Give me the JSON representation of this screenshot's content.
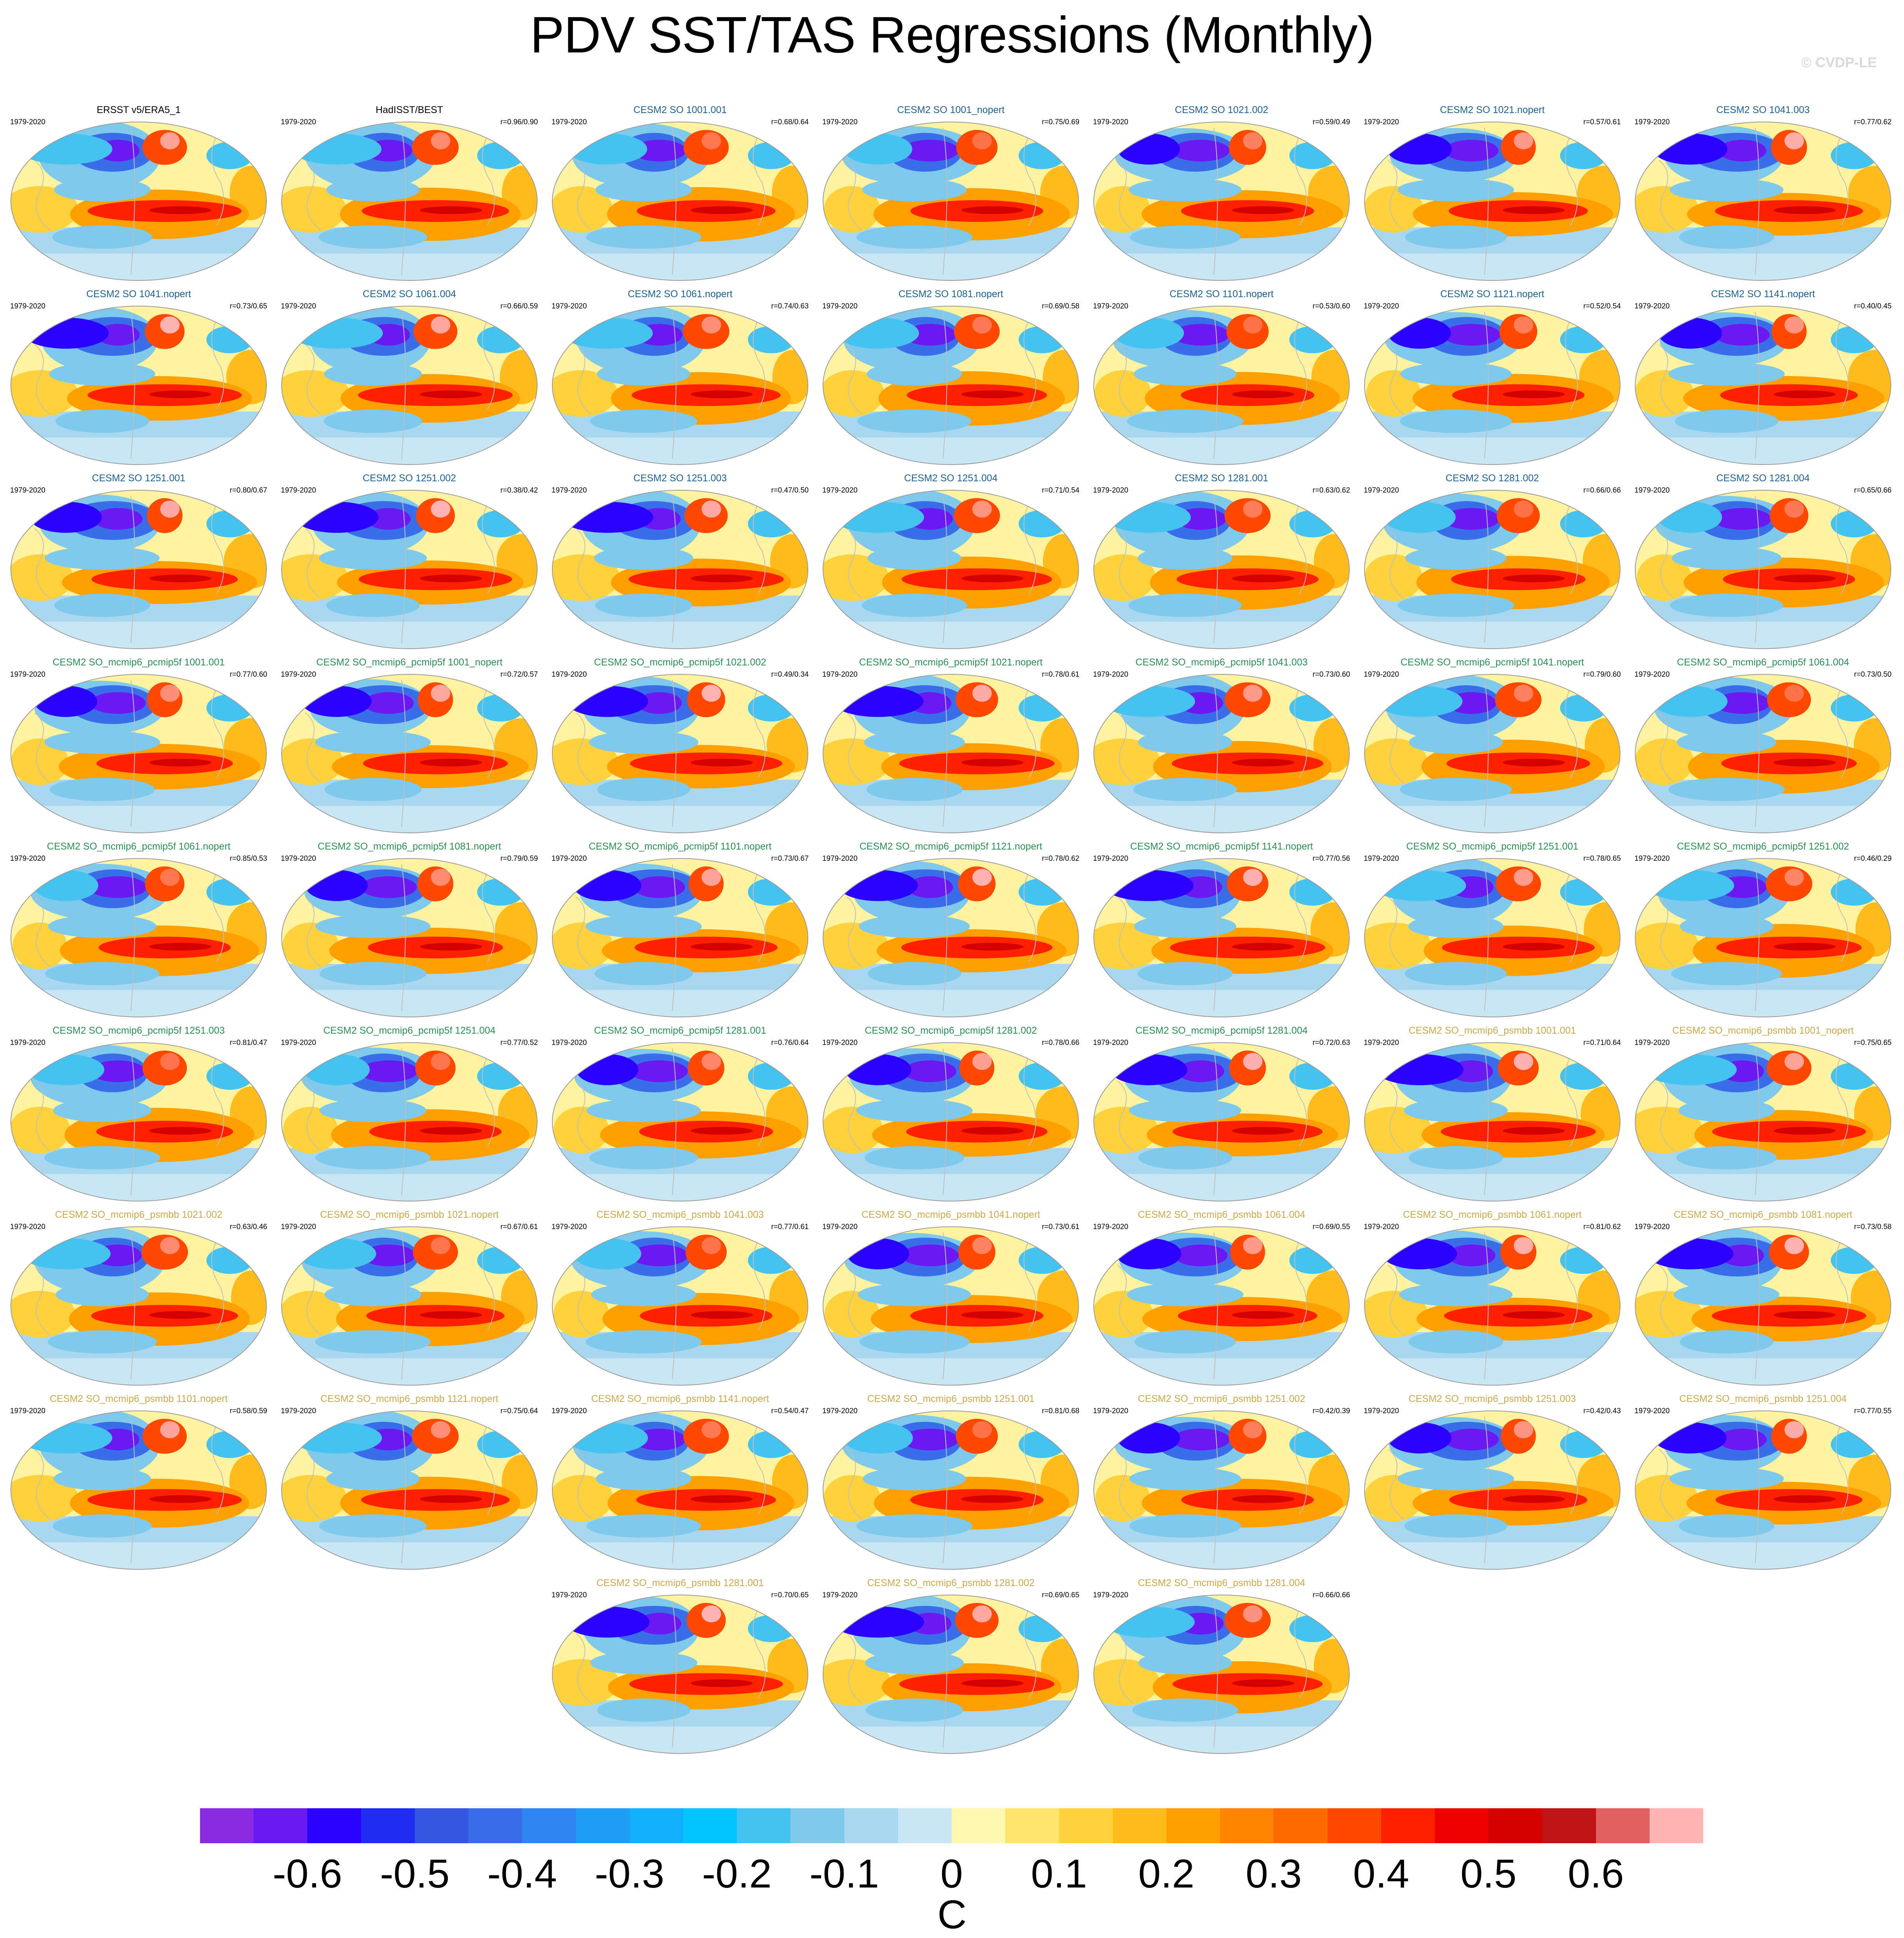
{
  "title": "PDV SST/TAS Regressions (Monthly)",
  "watermark": "© CVDP-LE",
  "period": "1979-2020",
  "colors": {
    "obs_title": "#000000",
    "cesm2_so": "#1f5f8b",
    "pcmip5f": "#2e8b57",
    "psmbb": "#c8a850"
  },
  "panels": [
    {
      "title": "ERSST v5/ERA5_1",
      "r": "",
      "group": "obs"
    },
    {
      "title": "HadISST/BEST",
      "r": "r=0.96/0.90",
      "group": "obs"
    },
    {
      "title": "CESM2 SO 1001.001",
      "r": "r=0.68/0.64",
      "group": "cesm2_so"
    },
    {
      "title": "CESM2 SO 1001_nopert",
      "r": "r=0.75/0.69",
      "group": "cesm2_so"
    },
    {
      "title": "CESM2 SO 1021.002",
      "r": "r=0.59/0.49",
      "group": "cesm2_so"
    },
    {
      "title": "CESM2 SO 1021.nopert",
      "r": "r=0.57/0.61",
      "group": "cesm2_so"
    },
    {
      "title": "CESM2 SO 1041.003",
      "r": "r=0.77/0.62",
      "group": "cesm2_so"
    },
    {
      "title": "CESM2 SO 1041.nopert",
      "r": "r=0.73/0.65",
      "group": "cesm2_so"
    },
    {
      "title": "CESM2 SO 1061.004",
      "r": "r=0.66/0.59",
      "group": "cesm2_so"
    },
    {
      "title": "CESM2 SO 1061.nopert",
      "r": "r=0.74/0.63",
      "group": "cesm2_so"
    },
    {
      "title": "CESM2 SO 1081.nopert",
      "r": "r=0.69/0.58",
      "group": "cesm2_so"
    },
    {
      "title": "CESM2 SO 1101.nopert",
      "r": "r=0.53/0.60",
      "group": "cesm2_so"
    },
    {
      "title": "CESM2 SO 1121.nopert",
      "r": "r=0.52/0.54",
      "group": "cesm2_so"
    },
    {
      "title": "CESM2 SO 1141.nopert",
      "r": "r=0.40/0.45",
      "group": "cesm2_so"
    },
    {
      "title": "CESM2 SO 1251.001",
      "r": "r=0.80/0.67",
      "group": "cesm2_so"
    },
    {
      "title": "CESM2 SO 1251.002",
      "r": "r=0.38/0.42",
      "group": "cesm2_so"
    },
    {
      "title": "CESM2 SO 1251.003",
      "r": "r=0.47/0.50",
      "group": "cesm2_so"
    },
    {
      "title": "CESM2 SO 1251.004",
      "r": "r=0.71/0.54",
      "group": "cesm2_so"
    },
    {
      "title": "CESM2 SO 1281.001",
      "r": "r=0.63/0.62",
      "group": "cesm2_so"
    },
    {
      "title": "CESM2 SO 1281.002",
      "r": "r=0.66/0.66",
      "group": "cesm2_so"
    },
    {
      "title": "CESM2 SO 1281.004",
      "r": "r=0.65/0.66",
      "group": "cesm2_so"
    },
    {
      "title": "CESM2 SO_mcmip6_pcmip5f 1001.001",
      "r": "r=0.77/0.60",
      "group": "pcmip5f"
    },
    {
      "title": "CESM2 SO_mcmip6_pcmip5f 1001_nopert",
      "r": "r=0.72/0.57",
      "group": "pcmip5f"
    },
    {
      "title": "CESM2 SO_mcmip6_pcmip5f 1021.002",
      "r": "r=0.49/0.34",
      "group": "pcmip5f"
    },
    {
      "title": "CESM2 SO_mcmip6_pcmip5f 1021.nopert",
      "r": "r=0.78/0.61",
      "group": "pcmip5f"
    },
    {
      "title": "CESM2 SO_mcmip6_pcmip5f 1041.003",
      "r": "r=0.73/0.60",
      "group": "pcmip5f"
    },
    {
      "title": "CESM2 SO_mcmip6_pcmip5f 1041.nopert",
      "r": "r=0.79/0.60",
      "group": "pcmip5f"
    },
    {
      "title": "CESM2 SO_mcmip6_pcmip5f 1061.004",
      "r": "r=0.73/0.50",
      "group": "pcmip5f"
    },
    {
      "title": "CESM2 SO_mcmip6_pcmip5f 1061.nopert",
      "r": "r=0.85/0.53",
      "group": "pcmip5f"
    },
    {
      "title": "CESM2 SO_mcmip6_pcmip5f 1081.nopert",
      "r": "r=0.79/0.59",
      "group": "pcmip5f"
    },
    {
      "title": "CESM2 SO_mcmip6_pcmip5f 1101.nopert",
      "r": "r=0.73/0.67",
      "group": "pcmip5f"
    },
    {
      "title": "CESM2 SO_mcmip6_pcmip5f 1121.nopert",
      "r": "r=0.78/0.62",
      "group": "pcmip5f"
    },
    {
      "title": "CESM2 SO_mcmip6_pcmip5f 1141.nopert",
      "r": "r=0.77/0.56",
      "group": "pcmip5f"
    },
    {
      "title": "CESM2 SO_mcmip6_pcmip5f 1251.001",
      "r": "r=0.78/0.65",
      "group": "pcmip5f"
    },
    {
      "title": "CESM2 SO_mcmip6_pcmip5f 1251.002",
      "r": "r=0.46/0.29",
      "group": "pcmip5f"
    },
    {
      "title": "CESM2 SO_mcmip6_pcmip5f 1251.003",
      "r": "r=0.81/0.47",
      "group": "pcmip5f"
    },
    {
      "title": "CESM2 SO_mcmip6_pcmip5f 1251.004",
      "r": "r=0.77/0.52",
      "group": "pcmip5f"
    },
    {
      "title": "CESM2 SO_mcmip6_pcmip5f 1281.001",
      "r": "r=0.76/0.64",
      "group": "pcmip5f"
    },
    {
      "title": "CESM2 SO_mcmip6_pcmip5f 1281.002",
      "r": "r=0.78/0.66",
      "group": "pcmip5f"
    },
    {
      "title": "CESM2 SO_mcmip6_pcmip5f 1281.004",
      "r": "r=0.72/0.63",
      "group": "pcmip5f"
    },
    {
      "title": "CESM2 SO_mcmip6_psmbb 1001.001",
      "r": "r=0.71/0.64",
      "group": "psmbb"
    },
    {
      "title": "CESM2 SO_mcmip6_psmbb 1001_nopert",
      "r": "r=0.75/0.65",
      "group": "psmbb"
    },
    {
      "title": "CESM2 SO_mcmip6_psmbb 1021.002",
      "r": "r=0.63/0.46",
      "group": "psmbb"
    },
    {
      "title": "CESM2 SO_mcmip6_psmbb 1021.nopert",
      "r": "r=0.67/0.61",
      "group": "psmbb"
    },
    {
      "title": "CESM2 SO_mcmip6_psmbb 1041.003",
      "r": "r=0.77/0.61",
      "group": "psmbb"
    },
    {
      "title": "CESM2 SO_mcmip6_psmbb 1041.nopert",
      "r": "r=0.73/0.61",
      "group": "psmbb"
    },
    {
      "title": "CESM2 SO_mcmip6_psmbb 1061.004",
      "r": "r=0.69/0.55",
      "group": "psmbb"
    },
    {
      "title": "CESM2 SO_mcmip6_psmbb 1061.nopert",
      "r": "r=0.81/0.62",
      "group": "psmbb"
    },
    {
      "title": "CESM2 SO_mcmip6_psmbb 1081.nopert",
      "r": "r=0.73/0.58",
      "group": "psmbb"
    },
    {
      "title": "CESM2 SO_mcmip6_psmbb 1101.nopert",
      "r": "r=0.58/0.59",
      "group": "psmbb"
    },
    {
      "title": "CESM2 SO_mcmip6_psmbb 1121.nopert",
      "r": "r=0.75/0.64",
      "group": "psmbb"
    },
    {
      "title": "CESM2 SO_mcmip6_psmbb 1141.nopert",
      "r": "r=0.54/0.47",
      "group": "psmbb"
    },
    {
      "title": "CESM2 SO_mcmip6_psmbb 1251.001",
      "r": "r=0.81/0.68",
      "group": "psmbb"
    },
    {
      "title": "CESM2 SO_mcmip6_psmbb 1251.002",
      "r": "r=0.42/0.39",
      "group": "psmbb"
    },
    {
      "title": "CESM2 SO_mcmip6_psmbb 1251.003",
      "r": "r=0.42/0.43",
      "group": "psmbb"
    },
    {
      "title": "CESM2 SO_mcmip6_psmbb 1251.004",
      "r": "r=0.77/0.55",
      "group": "psmbb"
    },
    {
      "title": "CESM2 SO_mcmip6_psmbb 1281.001",
      "r": "r=0.70/0.65",
      "group": "psmbb"
    },
    {
      "title": "CESM2 SO_mcmip6_psmbb 1281.002",
      "r": "r=0.69/0.65",
      "group": "psmbb"
    },
    {
      "title": "CESM2 SO_mcmip6_psmbb 1281.004",
      "r": "r=0.66/0.66",
      "group": "psmbb"
    }
  ],
  "colorbar": {
    "colors": [
      "#8a2be2",
      "#6a19f2",
      "#2a00ff",
      "#1f2df0",
      "#3556e0",
      "#3a6ee8",
      "#2f86f2",
      "#1f9cf5",
      "#12b0fa",
      "#00c3ff",
      "#44c2f0",
      "#7fc9ec",
      "#a8d8f0",
      "#c8e6f4",
      "#fff9b0",
      "#ffe56e",
      "#ffd23c",
      "#ffbb1a",
      "#ffa000",
      "#ff8500",
      "#ff6a00",
      "#ff4800",
      "#ff2000",
      "#ee0000",
      "#d40000",
      "#c01313",
      "#e36060",
      "#ffb3b3"
    ],
    "tick_labels": [
      "-0.6",
      "-0.5",
      "-0.4",
      "-0.3",
      "-0.2",
      "-0.1",
      "0",
      "0.1",
      "0.2",
      "0.3",
      "0.4",
      "0.5",
      "0.6"
    ],
    "units": "C"
  }
}
